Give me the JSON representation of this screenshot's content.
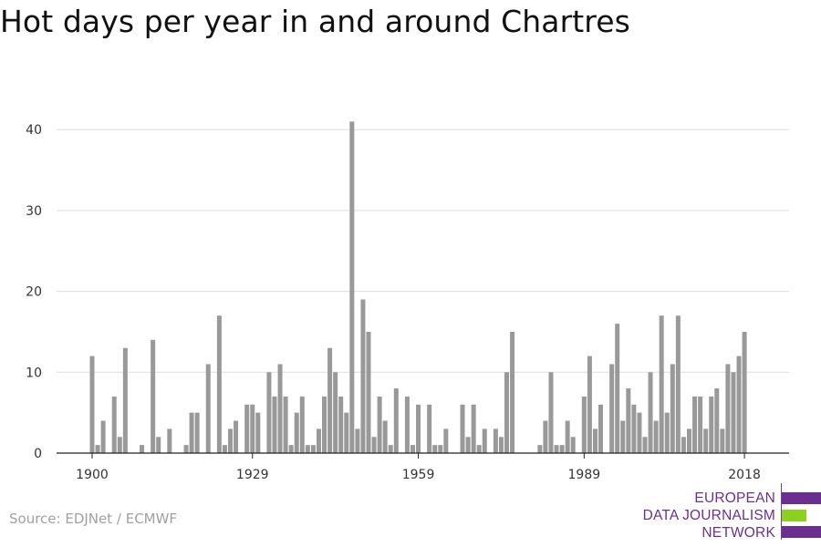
{
  "page": {
    "title": "Hot days per year in and around Chartres",
    "source": "Source: EDJNet / ECMWF"
  },
  "logo": {
    "lines": [
      "EUROPEAN",
      "DATA JOURNALISM",
      "NETWORK"
    ],
    "colors": {
      "purple": "#6b2f8f",
      "green": "#8cd11f"
    }
  },
  "chart_data": {
    "type": "bar",
    "title": "Hot days per year in and around Chartres",
    "xlabel": "",
    "ylabel": "",
    "ylim": [
      0,
      42
    ],
    "yticks": [
      0,
      10,
      20,
      30,
      40
    ],
    "xticks": [
      1900,
      1929,
      1959,
      1989,
      2018
    ],
    "grid": true,
    "bar_color": "#999999",
    "x": [
      1900,
      1901,
      1902,
      1903,
      1904,
      1905,
      1906,
      1907,
      1908,
      1909,
      1910,
      1911,
      1912,
      1913,
      1914,
      1915,
      1916,
      1917,
      1918,
      1919,
      1920,
      1921,
      1922,
      1923,
      1924,
      1925,
      1926,
      1927,
      1928,
      1929,
      1930,
      1931,
      1932,
      1933,
      1934,
      1935,
      1936,
      1937,
      1938,
      1939,
      1940,
      1941,
      1942,
      1943,
      1944,
      1945,
      1946,
      1947,
      1948,
      1949,
      1950,
      1951,
      1952,
      1953,
      1954,
      1955,
      1956,
      1957,
      1958,
      1959,
      1960,
      1961,
      1962,
      1963,
      1964,
      1965,
      1966,
      1967,
      1968,
      1969,
      1970,
      1971,
      1972,
      1973,
      1974,
      1975,
      1976,
      1977,
      1978,
      1979,
      1980,
      1981,
      1982,
      1983,
      1984,
      1985,
      1986,
      1987,
      1988,
      1989,
      1990,
      1991,
      1992,
      1993,
      1994,
      1995,
      1996,
      1997,
      1998,
      1999,
      2000,
      2001,
      2002,
      2003,
      2004,
      2005,
      2006,
      2007,
      2008,
      2009,
      2010,
      2011,
      2012,
      2013,
      2014,
      2015,
      2016,
      2017,
      2018,
      2019,
      2020
    ],
    "values": [
      12,
      1,
      4,
      0,
      7,
      2,
      13,
      0,
      0,
      1,
      0,
      14,
      2,
      0,
      3,
      0,
      0,
      1,
      5,
      5,
      0,
      11,
      0,
      17,
      1,
      3,
      4,
      0,
      6,
      6,
      5,
      0,
      10,
      7,
      11,
      7,
      1,
      5,
      7,
      1,
      1,
      3,
      7,
      13,
      10,
      7,
      5,
      41,
      3,
      19,
      15,
      2,
      7,
      4,
      1,
      8,
      0,
      7,
      1,
      6,
      0,
      6,
      1,
      1,
      3,
      0,
      0,
      6,
      2,
      6,
      1,
      3,
      0,
      3,
      2,
      10,
      15,
      0,
      0,
      0,
      0,
      1,
      4,
      10,
      1,
      1,
      4,
      2,
      0,
      7,
      12,
      3,
      6,
      0,
      11,
      16,
      4,
      8,
      6,
      5,
      2,
      10,
      4,
      17,
      5,
      11,
      17,
      2,
      3,
      7,
      7,
      3,
      7,
      8,
      3,
      11,
      10,
      12,
      15,
      0,
      0
    ]
  }
}
